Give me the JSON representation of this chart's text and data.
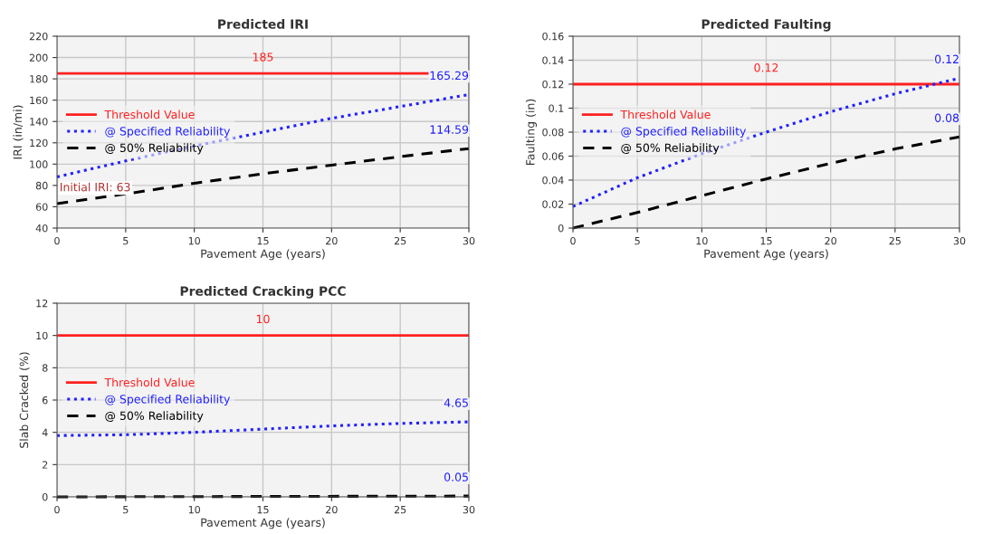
{
  "chart_data": [
    {
      "type": "line",
      "title": "Predicted IRI",
      "xlabel": "Pavement Age (years)",
      "ylabel": "IRI (in/mi)",
      "x": [
        0,
        5,
        10,
        15,
        20,
        25,
        30
      ],
      "xlim": [
        0,
        30
      ],
      "xticks": [
        0,
        5,
        10,
        15,
        20,
        25,
        30
      ],
      "ylim": [
        40,
        220
      ],
      "yticks": [
        40,
        60,
        80,
        100,
        120,
        140,
        160,
        180,
        200,
        220
      ],
      "grid": true,
      "legend": "left",
      "ref_lines": [
        {
          "axis": "y",
          "value": 185,
          "label": "Threshold Value",
          "color": "#ff2020",
          "line_style": "solid"
        }
      ],
      "series": [
        {
          "name": "@ Specified Reliability",
          "color": "#2020ff",
          "line_style": "dotted",
          "values": [
            88,
            103,
            117,
            130,
            143,
            154,
            165.29
          ],
          "value_labels": [
            null,
            null,
            null,
            null,
            null,
            null,
            "165.29"
          ]
        },
        {
          "name": "@ 50% Reliability",
          "color": "#000000",
          "line_style": "dashed",
          "values": [
            63,
            72,
            82,
            91,
            99,
            107,
            114.59
          ],
          "value_labels": [
            null,
            null,
            null,
            null,
            null,
            null,
            "114.59"
          ]
        }
      ],
      "annotations": [
        {
          "text": "185",
          "y": 185
        },
        {
          "text": "Initial IRI: 63",
          "x": 0,
          "y": 63
        }
      ]
    },
    {
      "type": "line",
      "title": "Predicted Faulting",
      "xlabel": "Pavement Age (years)",
      "ylabel": "Faulting (in)",
      "x": [
        0,
        5,
        10,
        15,
        20,
        25,
        30
      ],
      "xlim": [
        0,
        30
      ],
      "xticks": [
        0,
        5,
        10,
        15,
        20,
        25,
        30
      ],
      "ylim": [
        0,
        0.16
      ],
      "yticks": [
        0,
        0.02,
        0.04,
        0.06,
        0.08,
        0.1,
        0.12,
        0.14,
        0.16
      ],
      "grid": true,
      "legend": "left",
      "ref_lines": [
        {
          "axis": "y",
          "value": 0.12,
          "label": "Threshold Value",
          "color": "#ff2020",
          "line_style": "solid"
        }
      ],
      "series": [
        {
          "name": "@ Specified Reliability",
          "color": "#2020ff",
          "line_style": "dotted",
          "values": [
            0.018,
            0.042,
            0.062,
            0.08,
            0.097,
            0.112,
            0.125
          ],
          "value_labels": [
            null,
            null,
            null,
            null,
            null,
            null,
            "0.12"
          ]
        },
        {
          "name": "@ 50% Reliability",
          "color": "#000000",
          "line_style": "dashed",
          "values": [
            0,
            0.013,
            0.027,
            0.041,
            0.054,
            0.066,
            0.076
          ],
          "value_labels": [
            null,
            null,
            null,
            null,
            null,
            null,
            "0.08"
          ]
        }
      ],
      "annotations": [
        {
          "text": "0.12",
          "y": 0.12
        }
      ]
    },
    {
      "type": "line",
      "title": "Predicted Cracking PCC",
      "xlabel": "Pavement Age (years)",
      "ylabel": "Slab Cracked (%)",
      "x": [
        0,
        5,
        10,
        15,
        20,
        25,
        30
      ],
      "xlim": [
        0,
        30
      ],
      "xticks": [
        0,
        5,
        10,
        15,
        20,
        25,
        30
      ],
      "ylim": [
        0,
        12
      ],
      "yticks": [
        0,
        2,
        4,
        6,
        8,
        10,
        12
      ],
      "grid": true,
      "legend": "left",
      "ref_lines": [
        {
          "axis": "y",
          "value": 10,
          "label": "Threshold Value",
          "color": "#ff2020",
          "line_style": "solid"
        }
      ],
      "series": [
        {
          "name": "@ Specified Reliability",
          "color": "#2020ff",
          "line_style": "dotted",
          "values": [
            3.8,
            3.85,
            4.0,
            4.2,
            4.4,
            4.55,
            4.65
          ],
          "value_labels": [
            null,
            null,
            null,
            null,
            null,
            null,
            "4.65"
          ]
        },
        {
          "name": "@ 50% Reliability",
          "color": "#000000",
          "line_style": "dashed",
          "x": [
            0,
            30
          ],
          "values": [
            0,
            0.05
          ],
          "value_labels": [
            null,
            "0.05"
          ]
        }
      ],
      "annotations": [
        {
          "text": "10",
          "y": 10
        }
      ]
    }
  ]
}
